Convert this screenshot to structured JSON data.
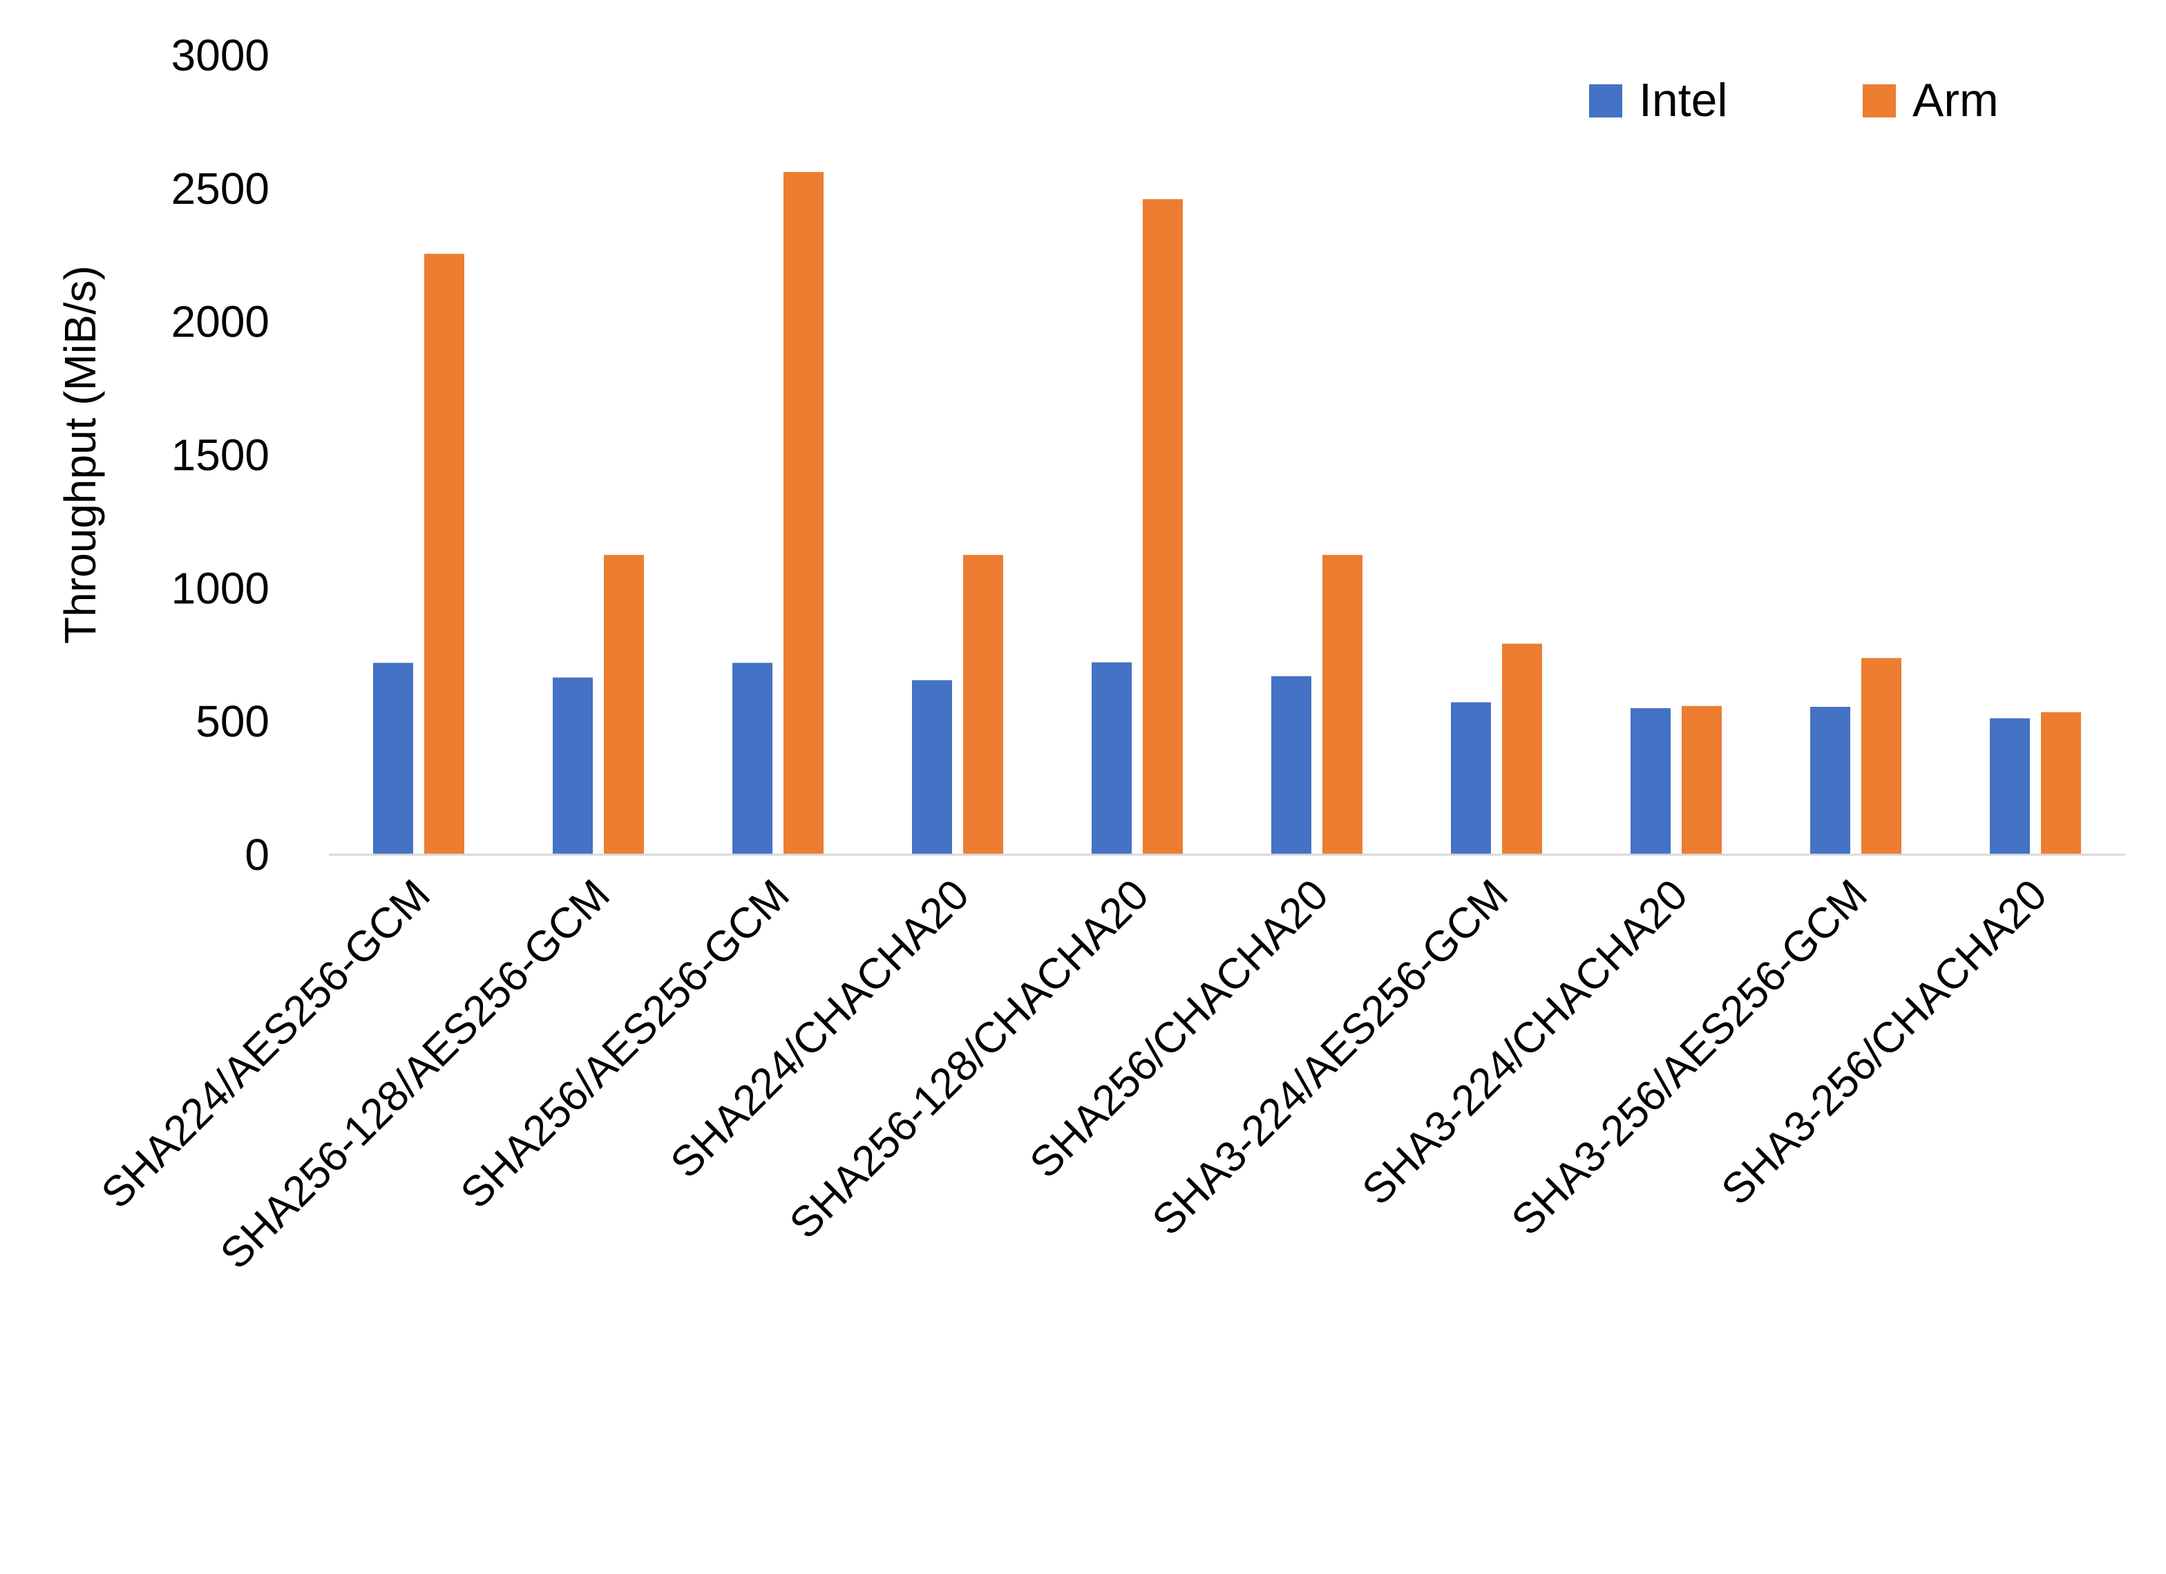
{
  "chart_data": {
    "type": "bar",
    "title": "",
    "xlabel": "",
    "ylabel": "Throughput (MiB/s)",
    "ylim": [
      0,
      3000
    ],
    "yticks": [
      0,
      500,
      1000,
      1500,
      2000,
      2500,
      3000
    ],
    "grid": false,
    "legend_position": "top-right",
    "categories": [
      "SHA224/AES256-GCM",
      "SHA256-128/AES256-GCM",
      "SHA256/AES256-GCM",
      "SHA224/CHACHA20",
      "SHA256-128/CHACHA20",
      "SHA256/CHACHA20",
      "SHA3-224/AES256-GCM",
      "SHA3-224/CHACHA20",
      "SHA3-256/AES256-GCM",
      "SHA3-256/CHACHA20"
    ],
    "series": [
      {
        "name": "Intel",
        "color": "#4472C4",
        "values": [
          720,
          665,
          720,
          655,
          722,
          670,
          572,
          550,
          555,
          512
        ]
      },
      {
        "name": "Arm",
        "color": "#ED7D31",
        "values": [
          2255,
          1125,
          2562,
          1125,
          2460,
          1125,
          792,
          558,
          738,
          535
        ]
      }
    ]
  }
}
